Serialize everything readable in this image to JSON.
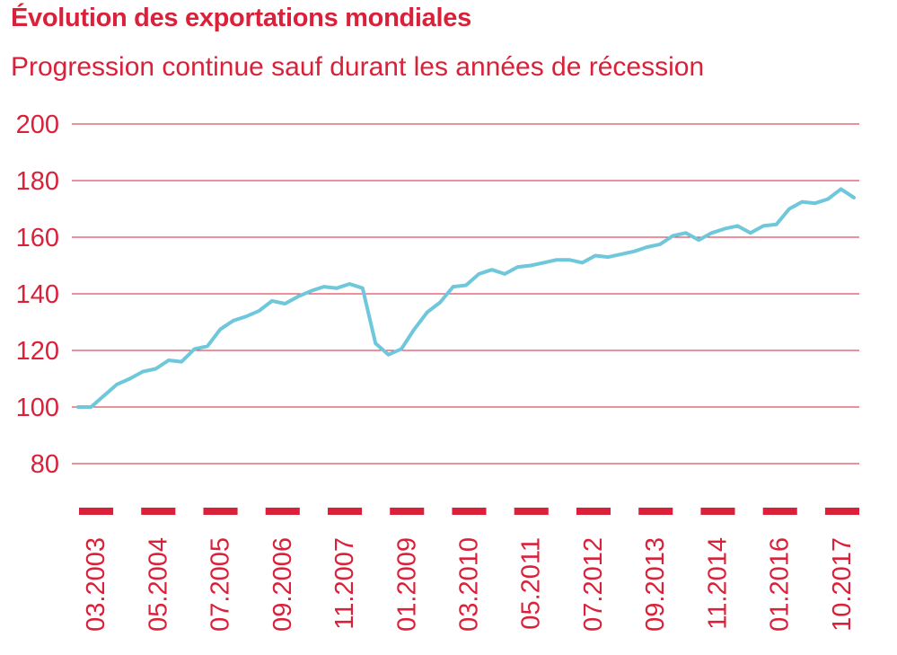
{
  "title": "Évolution des exportations mondiales",
  "subtitle": "Progression continue sauf durant les années de récession",
  "chart_data": {
    "type": "line",
    "title": "Évolution des exportations mondiales",
    "subtitle": "Progression continue sauf durant les années de récession",
    "xlabel": "",
    "ylabel": "",
    "ylim": [
      80,
      200
    ],
    "yticks": [
      80,
      100,
      120,
      140,
      160,
      180,
      200
    ],
    "grid": true,
    "x_tick_labels": [
      "03.2003",
      "05.2004",
      "07.2005",
      "09.2006",
      "11.2007",
      "01.2009",
      "03.2010",
      "05.2011",
      "07.2012",
      "09.2013",
      "11.2014",
      "01.2016",
      "10.2017"
    ],
    "line_color": "#6ec7da",
    "accent_color": "#d9213a",
    "series": [
      {
        "values": [
          100,
          100,
          104,
          108,
          110,
          112.5,
          113.5,
          116.5,
          116,
          120.5,
          121.5,
          127.5,
          130.5,
          132,
          134,
          137.5,
          136.5,
          139,
          141,
          142.5,
          142,
          143.5,
          142,
          122.5,
          118.5,
          120.5,
          127.5,
          133.5,
          137,
          142.5,
          143,
          147,
          148.5,
          147,
          149.5,
          150,
          151,
          152,
          152,
          151,
          153.5,
          153,
          154,
          155,
          156.5,
          157.5,
          160.5,
          161.5,
          159,
          161.5,
          163,
          164,
          161.5,
          164,
          164.5,
          170,
          172.5,
          172,
          173.5,
          177,
          174
        ]
      }
    ]
  }
}
